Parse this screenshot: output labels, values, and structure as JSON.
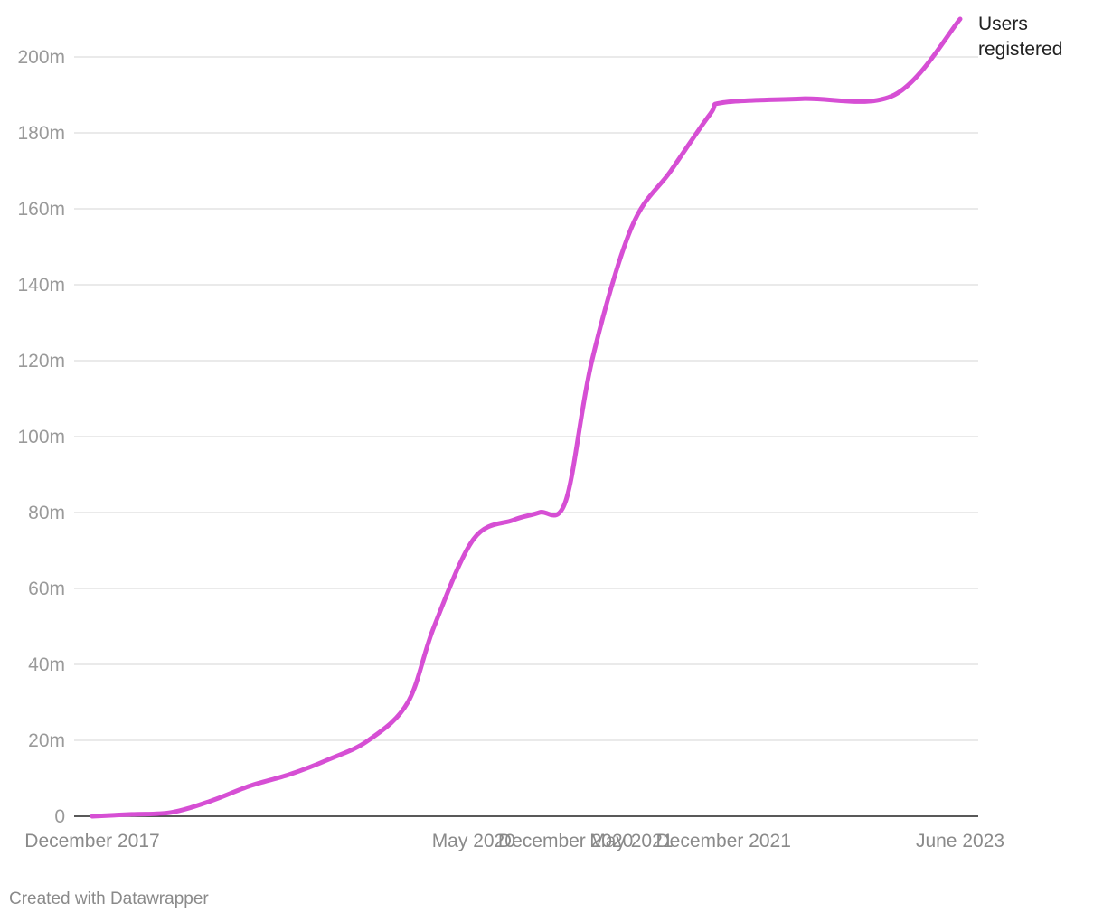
{
  "chart_data": {
    "type": "line",
    "x": [
      "2017-12",
      "2018-03",
      "2018-06",
      "2018-09",
      "2018-12",
      "2019-03",
      "2019-06",
      "2019-09",
      "2019-12",
      "2020-02",
      "2020-05",
      "2020-08",
      "2020-10",
      "2020-12",
      "2021-02",
      "2021-05",
      "2021-08",
      "2021-11",
      "2021-12",
      "2022-06",
      "2023-01",
      "2023-06"
    ],
    "series": [
      {
        "name": "Users registered",
        "color": "#d64fd4",
        "values": [
          0,
          0.5,
          1,
          4,
          8,
          11,
          15,
          20,
          30,
          50,
          73,
          78,
          80,
          83,
          120,
          155,
          170,
          185,
          188,
          189,
          190,
          210
        ]
      }
    ],
    "x_tick_labels": [
      {
        "label": "December 2017",
        "x": "2017-12"
      },
      {
        "label": "May 2020",
        "x": "2020-05"
      },
      {
        "label": "December 2020",
        "x": "2020-12"
      },
      {
        "label": "May 2021",
        "x": "2021-05"
      },
      {
        "label": "December 2021",
        "x": "2021-12"
      },
      {
        "label": "June 2023",
        "x": "2023-06"
      }
    ],
    "y_ticks": [
      {
        "value": 0,
        "label": "0"
      },
      {
        "value": 20,
        "label": "20m"
      },
      {
        "value": 40,
        "label": "40m"
      },
      {
        "value": 60,
        "label": "60m"
      },
      {
        "value": 80,
        "label": "80m"
      },
      {
        "value": 100,
        "label": "100m"
      },
      {
        "value": 120,
        "label": "120m"
      },
      {
        "value": 140,
        "label": "140m"
      },
      {
        "value": 160,
        "label": "160m"
      },
      {
        "value": 180,
        "label": "180m"
      },
      {
        "value": 200,
        "label": "200m"
      }
    ],
    "ylim": [
      0,
      210
    ],
    "grid": true,
    "series_label_lines": [
      "Users",
      "registered"
    ],
    "title": "",
    "xlabel": "",
    "ylabel": ""
  },
  "footer": {
    "credit": "Created with Datawrapper"
  }
}
